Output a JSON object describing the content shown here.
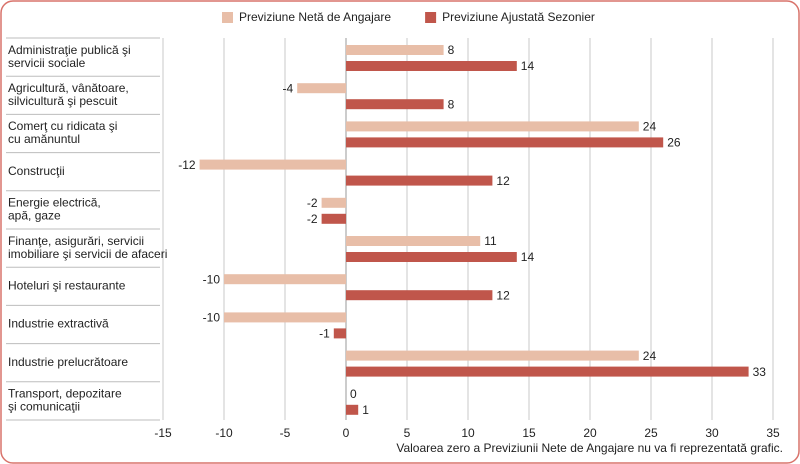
{
  "chart_data": {
    "type": "hbar",
    "categories": [
      [
        "Administraţie publică şi",
        "servicii sociale"
      ],
      [
        "Agricultură, vânătoare,",
        "silvicultură şi pescuit"
      ],
      [
        "Comerţ cu ridicata şi",
        "cu amănuntul"
      ],
      [
        "Construcţii"
      ],
      [
        "Energie electrică,",
        "apă, gaze"
      ],
      [
        "Finanţe, asigurări, servicii",
        "imobiliare şi servicii de afaceri"
      ],
      [
        "Hoteluri şi restaurante"
      ],
      [
        "Industrie extractivă"
      ],
      [
        "Industrie prelucrătoare"
      ],
      [
        "Transport, depozitare",
        "şi comunicaţii"
      ]
    ],
    "series": [
      {
        "name": "Previziune Netă de Angajare",
        "color": "#e8bea8",
        "values": [
          8,
          -4,
          24,
          -12,
          -2,
          11,
          -10,
          -10,
          24,
          0
        ]
      },
      {
        "name": "Previziune Ajustată Sezonier",
        "color": "#c0564b",
        "values": [
          14,
          8,
          26,
          12,
          -2,
          14,
          12,
          -1,
          33,
          1
        ]
      }
    ],
    "xlim": [
      -15,
      35
    ],
    "xticks": [
      -15,
      -10,
      -5,
      0,
      5,
      10,
      15,
      20,
      25,
      30,
      35
    ],
    "grid": true,
    "annotation": "Valoarea zero a Previziunii Nete de Angajare nu va fi reprezentată grafic."
  }
}
